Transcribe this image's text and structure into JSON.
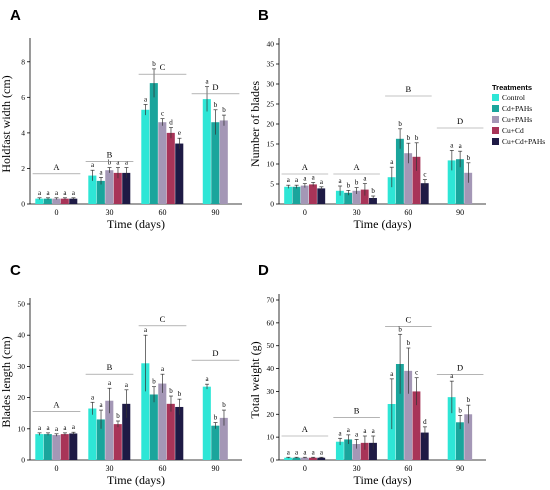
{
  "legend": {
    "title": "Treatments",
    "items": [
      "Control",
      "Cd+PAHs",
      "Cu+PAHs",
      "Cu+Cd",
      "Cu+Cd+PAHs"
    ],
    "colors": [
      "#2ee6d6",
      "#1aa59c",
      "#a497b6",
      "#a83458",
      "#1e1a45"
    ]
  },
  "chart_data": [
    {
      "panel": "A",
      "type": "bar",
      "xlabel": "Time (days)",
      "ylabel": "Holdfast width (cm)",
      "ylim": [
        0,
        9
      ],
      "yticks": [
        0,
        2,
        4,
        6,
        8
      ],
      "categories": [
        "0",
        "30",
        "60",
        "90"
      ],
      "series": [
        {
          "name": "Control",
          "values": [
            0.3,
            1.6,
            5.3,
            5.9
          ],
          "errors": [
            0.05,
            0.3,
            0.3,
            0.7
          ],
          "letters": [
            "a",
            "a",
            "a",
            "a"
          ]
        },
        {
          "name": "Cd+PAHs",
          "values": [
            0.3,
            1.3,
            6.8,
            4.6
          ],
          "errors": [
            0.05,
            0.2,
            0.8,
            0.7
          ],
          "letters": [
            "a",
            "a",
            "b",
            "b"
          ]
        },
        {
          "name": "Cu+PAHs",
          "values": [
            0.3,
            1.9,
            4.6,
            4.7
          ],
          "errors": [
            0.05,
            0.15,
            0.2,
            0.3
          ],
          "letters": [
            "a",
            "b",
            "c",
            "b"
          ]
        },
        {
          "name": "Cu+Cd",
          "values": [
            0.3,
            1.75,
            4.0,
            null
          ],
          "errors": [
            0.05,
            0.3,
            0.3,
            null
          ],
          "letters": [
            "a",
            "a",
            "d",
            ""
          ]
        },
        {
          "name": "Cu+Cd+PAHs",
          "values": [
            0.3,
            1.75,
            3.4,
            null
          ],
          "errors": [
            0.05,
            0.3,
            0.3,
            null
          ],
          "letters": [
            "a",
            "a",
            "e",
            ""
          ]
        }
      ],
      "group_letters": [
        {
          "label": "A",
          "from": 0,
          "to": 0,
          "y": 1.7
        },
        {
          "label": "B",
          "from": 1,
          "to": 1,
          "y": 2.4
        },
        {
          "label": "C",
          "from": 2,
          "to": 2,
          "y": 7.3
        },
        {
          "label": "D",
          "from": 3,
          "to": 3,
          "y": 6.2
        }
      ]
    },
    {
      "panel": "B",
      "type": "bar",
      "xlabel": "Time (days)",
      "ylabel": "Number of blades",
      "ylim": [
        0,
        40
      ],
      "yticks": [
        0,
        5,
        10,
        15,
        20,
        25,
        30,
        35,
        40
      ],
      "categories": [
        "0",
        "30",
        "60",
        "90"
      ],
      "series": [
        {
          "name": "Control",
          "values": [
            4.3,
            3.3,
            6.7,
            10.9
          ],
          "errors": [
            0.4,
            1.2,
            2.5,
            2.5
          ],
          "letters": [
            "a",
            "a",
            "a",
            "a"
          ]
        },
        {
          "name": "Cd+PAHs",
          "values": [
            4.3,
            2.8,
            16.3,
            11.2
          ],
          "errors": [
            0.4,
            0.6,
            2.5,
            2.0
          ],
          "letters": [
            "a",
            "b",
            "b",
            "a"
          ]
        },
        {
          "name": "Cu+PAHs",
          "values": [
            4.6,
            3.3,
            12.7,
            7.8
          ],
          "errors": [
            0.5,
            0.8,
            2.5,
            2.5
          ],
          "letters": [
            "a",
            "b",
            "b",
            "b"
          ]
        },
        {
          "name": "Cu+Cd",
          "values": [
            4.9,
            3.6,
            11.8,
            null
          ],
          "errors": [
            0.5,
            1.5,
            3.5,
            null
          ],
          "letters": [
            "a",
            "a",
            "b",
            ""
          ]
        },
        {
          "name": "Cu+Cd+PAHs",
          "values": [
            3.9,
            1.5,
            5.2,
            null
          ],
          "errors": [
            0.4,
            0.5,
            0.9,
            null
          ],
          "letters": [
            "a",
            "b",
            "c",
            ""
          ]
        }
      ],
      "group_letters": [
        {
          "label": "A",
          "from": 0,
          "to": 0,
          "y": 7.5
        },
        {
          "label": "A",
          "from": 1,
          "to": 1,
          "y": 7.5
        },
        {
          "label": "B",
          "from": 2,
          "to": 2,
          "y": 27
        },
        {
          "label": "D",
          "from": 3,
          "to": 3,
          "y": 19
        }
      ]
    },
    {
      "panel": "C",
      "type": "bar",
      "xlabel": "Time (days)",
      "ylabel": "Blades length (cm)",
      "ylim": [
        0,
        50
      ],
      "yticks": [
        0,
        10,
        20,
        30,
        40,
        50
      ],
      "categories": [
        "0",
        "30",
        "60",
        "90"
      ],
      "series": [
        {
          "name": "Control",
          "values": [
            8.3,
            16.5,
            31.0,
            23.5
          ],
          "errors": [
            0.4,
            2.0,
            9.0,
            0.8
          ],
          "letters": [
            "a",
            "a",
            "a",
            "a"
          ]
        },
        {
          "name": "Cd+PAHs",
          "values": [
            8.3,
            13.0,
            21.0,
            11.0
          ],
          "errors": [
            0.4,
            3.0,
            2.5,
            1.0
          ],
          "letters": [
            "a",
            "a",
            "b",
            "b"
          ]
        },
        {
          "name": "Cu+PAHs",
          "values": [
            8.0,
            19.0,
            24.5,
            13.5
          ],
          "errors": [
            0.4,
            4.0,
            3.0,
            2.5
          ],
          "letters": [
            "a",
            "a",
            "a",
            "b"
          ]
        },
        {
          "name": "Cu+Cd",
          "values": [
            8.3,
            11.5,
            18.0,
            null
          ],
          "errors": [
            0.4,
            1.0,
            2.5,
            null
          ],
          "letters": [
            "a",
            "b",
            "b",
            ""
          ]
        },
        {
          "name": "Cu+Cd+PAHs",
          "values": [
            8.5,
            18.0,
            17.0,
            null
          ],
          "errors": [
            0.4,
            4.5,
            2.5,
            null
          ],
          "letters": [
            "a",
            "a",
            "b",
            ""
          ]
        }
      ],
      "group_letters": [
        {
          "label": "A",
          "from": 0,
          "to": 0,
          "y": 15.5
        },
        {
          "label": "B",
          "from": 1,
          "to": 1,
          "y": 27.5
        },
        {
          "label": "C",
          "from": 2,
          "to": 2,
          "y": 43
        },
        {
          "label": "D",
          "from": 3,
          "to": 3,
          "y": 32
        }
      ]
    },
    {
      "panel": "D",
      "type": "bar",
      "xlabel": "Time (days)",
      "ylabel": "Total weight (g)",
      "ylim": [
        0,
        70
      ],
      "yticks": [
        0,
        10,
        20,
        30,
        40,
        50,
        60,
        70
      ],
      "categories": [
        "0",
        "30",
        "60",
        "90"
      ],
      "series": [
        {
          "name": "Control",
          "values": [
            1.0,
            8.0,
            24.5,
            27.5
          ],
          "errors": [
            0.2,
            1.5,
            11.0,
            7.0
          ],
          "letters": [
            "a",
            "a",
            "a",
            "a"
          ]
        },
        {
          "name": "Cd+PAHs",
          "values": [
            1.0,
            9.0,
            42.0,
            16.5
          ],
          "errors": [
            0.2,
            2.0,
            13.0,
            3.0
          ],
          "letters": [
            "a",
            "a",
            "b",
            "b"
          ]
        },
        {
          "name": "Cu+PAHs",
          "values": [
            1.0,
            7.0,
            39.0,
            20.0
          ],
          "errors": [
            0.2,
            2.0,
            10.0,
            4.0
          ],
          "letters": [
            "a",
            "a",
            "b",
            "b"
          ]
        },
        {
          "name": "Cu+Cd",
          "values": [
            1.0,
            7.5,
            30.0,
            null
          ],
          "errors": [
            0.2,
            3.0,
            6.0,
            null
          ],
          "letters": [
            "a",
            "a",
            "c",
            ""
          ]
        },
        {
          "name": "Cu+Cd+PAHs",
          "values": [
            1.0,
            7.5,
            12.0,
            null
          ],
          "errors": [
            0.2,
            3.0,
            2.5,
            null
          ],
          "letters": [
            "a",
            "a",
            "d",
            ""
          ]
        }
      ],
      "group_letters": [
        {
          "label": "A",
          "from": 0,
          "to": 0,
          "y": 10.5
        },
        {
          "label": "B",
          "from": 1,
          "to": 1,
          "y": 18.5
        },
        {
          "label": "C",
          "from": 2,
          "to": 2,
          "y": 58.5
        },
        {
          "label": "D",
          "from": 3,
          "to": 3,
          "y": 37.5
        }
      ]
    }
  ]
}
